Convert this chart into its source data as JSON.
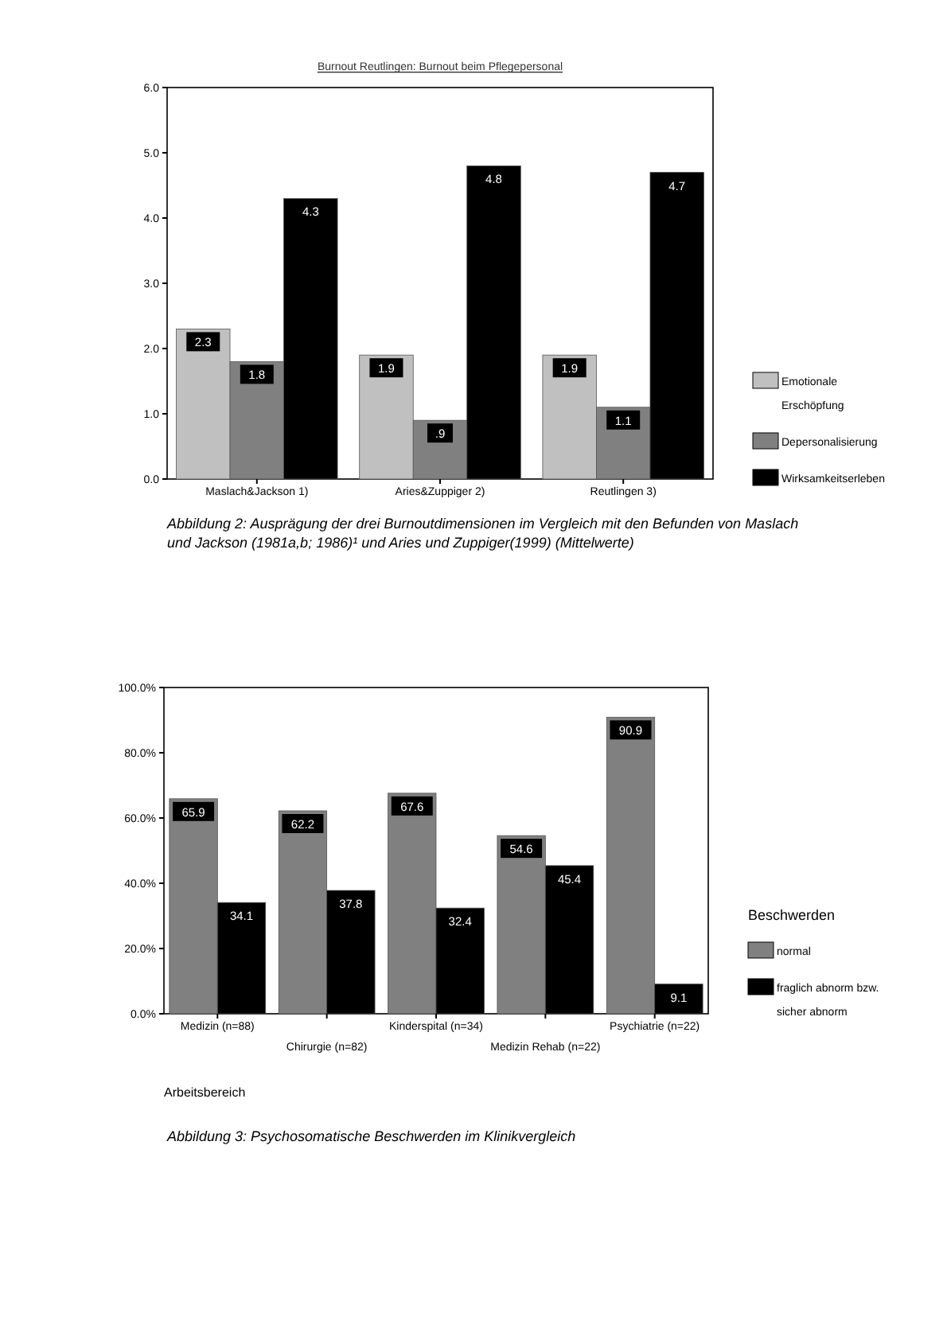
{
  "chart_data": [
    {
      "type": "bar",
      "title": "Burnout Reutlingen: Burnout beim Pflegepersonal",
      "categories": [
        "Maslach&Jackson 1)",
        "Aries&Zuppiger 2)",
        "Reutlingen 3)"
      ],
      "series": [
        {
          "name": "Emotionale Erschöpfung",
          "color": "#c0c0c0",
          "values": [
            2.3,
            1.9,
            1.9
          ],
          "value_labels": [
            "2.3",
            "1.9",
            "1.9"
          ]
        },
        {
          "name": "Depersonalisierung",
          "color": "#808080",
          "values": [
            1.8,
            0.9,
            1.1
          ],
          "value_labels": [
            "1.8",
            ".9",
            "1.1"
          ]
        },
        {
          "name": "Wirksamkeitserleben",
          "color": "#000000",
          "values": [
            4.3,
            4.8,
            4.7
          ],
          "value_labels": [
            "4.3",
            "4.8",
            "4.7"
          ]
        }
      ],
      "ylim": [
        0,
        6
      ],
      "yticks": [
        {
          "value": 0,
          "label": "0.0"
        },
        {
          "value": 1,
          "label": "1.0"
        },
        {
          "value": 2,
          "label": "2.0"
        },
        {
          "value": 3,
          "label": "3.0"
        },
        {
          "value": 4,
          "label": "4.0"
        },
        {
          "value": 5,
          "label": "5.0"
        },
        {
          "value": 6,
          "label": "6.0"
        }
      ],
      "legend": "right",
      "grid": false,
      "annotations": [
        "Abbildung 2: Ausprägung der drei Burnoutdimensionen im Vergleich mit den  Befunden von Maslach und Jackson (1981a,b; 1986)¹ und Aries und Zuppiger(1999) (Mittelwerte)"
      ]
    },
    {
      "type": "bar",
      "categories": [
        "Medizin (n=88)",
        "Chirurgie (n=82)",
        "Kinderspital (n=34)",
        "Medizin Rehab (n=22)",
        "Psychiatrie (n=22)"
      ],
      "series": [
        {
          "name": "normal",
          "color": "#808080",
          "values": [
            65.9,
            62.2,
            67.6,
            54.6,
            90.9
          ]
        },
        {
          "name": "fraglich abnorm bzw. sicher abnorm",
          "color": "#000000",
          "values": [
            34.1,
            37.8,
            32.4,
            45.4,
            9.1
          ]
        }
      ],
      "data_labels": true,
      "xlabel": "Arbeitsbereich",
      "legend_title": "Beschwerden",
      "legend": "right",
      "grid": false,
      "ylim": [
        0,
        100
      ],
      "yticks": [
        {
          "value": 0,
          "label": "0.0%"
        },
        {
          "value": 20,
          "label": "20.0%"
        },
        {
          "value": 40,
          "label": "40.0%"
        },
        {
          "value": 60,
          "label": "60.0%"
        },
        {
          "value": 80,
          "label": "80.0%"
        },
        {
          "value": 100,
          "label": "100.0%"
        }
      ],
      "annotations": [
        "Abbildung 3: Psychosomatische Beschwerden im Klinikvergleich"
      ]
    }
  ]
}
